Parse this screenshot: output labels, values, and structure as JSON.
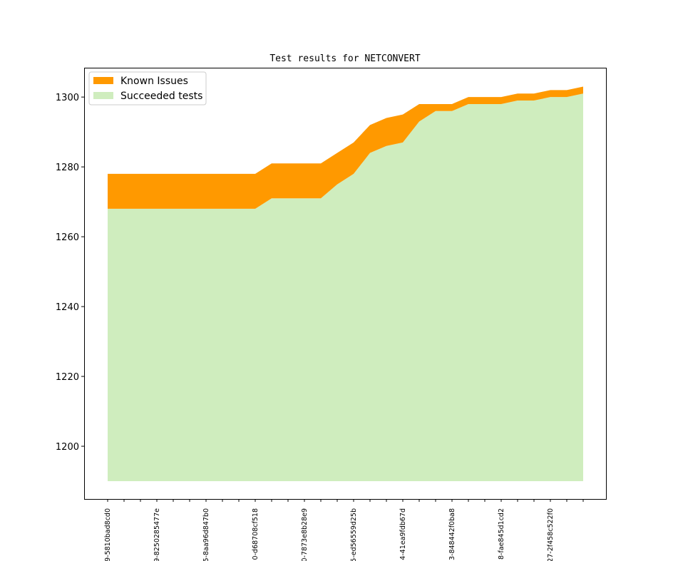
{
  "chart_data": {
    "type": "area",
    "title": "Test results for NETCONVERT",
    "xlabel": "",
    "ylabel": "",
    "ylim": [
      1184.9,
      1308.4
    ],
    "baseline": 1190,
    "yticks": [
      1200,
      1220,
      1240,
      1260,
      1280,
      1300
    ],
    "x_tick_count": 30,
    "x_tick_labels": [
      "9-5810bad8cd0",
      "9-8250285477e",
      "5-8aa96d847b0",
      "0-d68708cf518",
      "0-7873e8b28e9",
      "5-ed56559d25b",
      "4-41ea9fdb67d",
      "3-848442f0ba8",
      "8-fae845d1cd2",
      "27-2f458c522f0"
    ],
    "x_label_every": 3,
    "legend": {
      "placement": "top-left",
      "entries": [
        "Known Issues",
        "Succeeded tests"
      ]
    },
    "series": [
      {
        "name": "Succeeded tests",
        "color": "#cfedbe",
        "values": [
          1268,
          1268,
          1268,
          1268,
          1268,
          1268,
          1268,
          1268,
          1268,
          1268,
          1271,
          1271,
          1271,
          1271,
          1275,
          1278,
          1284,
          1286,
          1287,
          1293,
          1296,
          1296,
          1298,
          1298,
          1298,
          1299,
          1299,
          1300,
          1300,
          1301
        ]
      },
      {
        "name": "Known Issues",
        "color": "#ff9900",
        "values": [
          10,
          10,
          10,
          10,
          10,
          10,
          10,
          10,
          10,
          10,
          10,
          10,
          10,
          10,
          9,
          9,
          8,
          8,
          8,
          5,
          2,
          2,
          2,
          2,
          2,
          2,
          2,
          2,
          2,
          2
        ]
      }
    ]
  }
}
